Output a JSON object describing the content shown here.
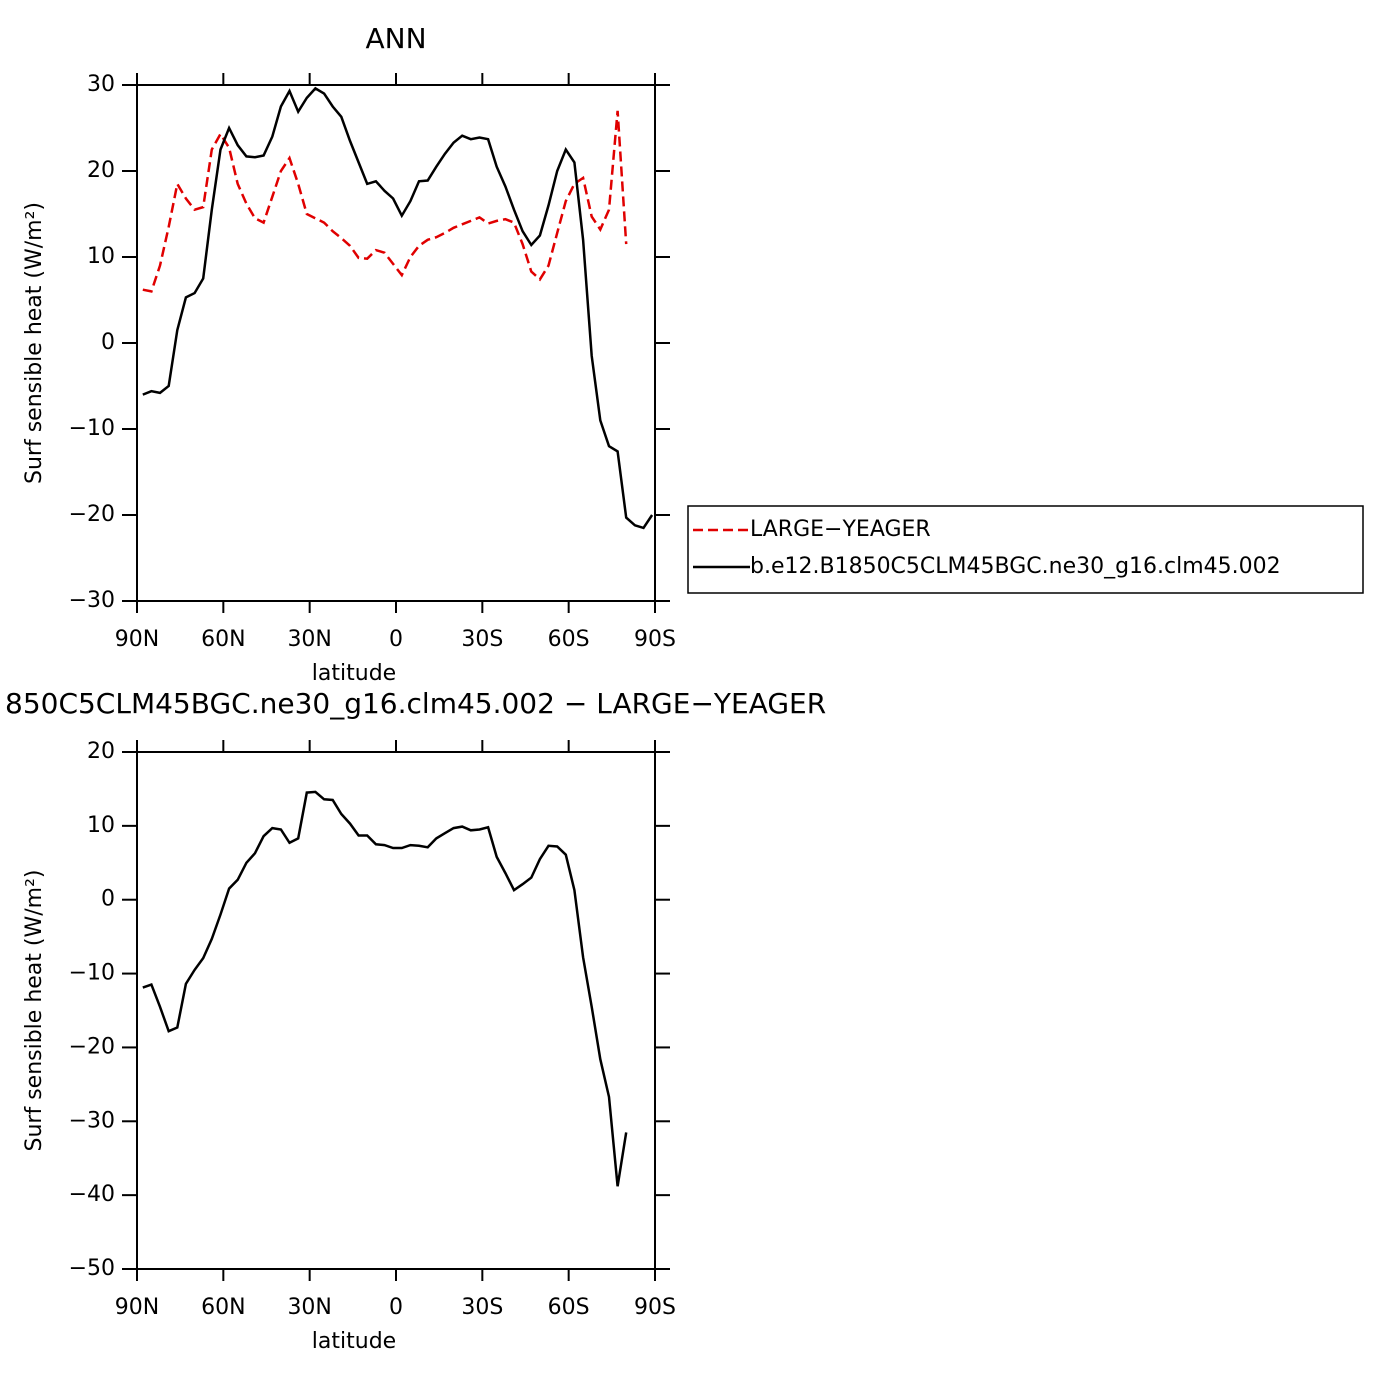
{
  "chart_data": [
    {
      "type": "line",
      "title": "ANN",
      "xlabel": "latitude",
      "ylabel": "Surf sensible heat (W/m²)",
      "x": [
        88,
        85,
        82,
        79,
        76,
        73,
        70,
        67,
        64,
        61,
        58,
        55,
        52,
        49,
        46,
        43,
        40,
        37,
        34,
        31,
        28,
        25,
        22,
        19,
        16,
        13,
        10,
        7,
        4,
        1,
        -2,
        -5,
        -8,
        -11,
        -14,
        -17,
        -20,
        -23,
        -26,
        -29,
        -32,
        -35,
        -38,
        -41,
        -44,
        -47,
        -50,
        -53,
        -56,
        -59,
        -62,
        -65,
        -68,
        -71,
        -74,
        -77,
        -80,
        -83,
        -86,
        -89
      ],
      "xlim": [
        90,
        -90
      ],
      "xticks": [
        {
          "value": 90,
          "label": "90N"
        },
        {
          "value": 60,
          "label": "60N"
        },
        {
          "value": 30,
          "label": "30N"
        },
        0,
        {
          "value": -30,
          "label": "30S"
        },
        {
          "value": -60,
          "label": "60S"
        },
        {
          "value": -90,
          "label": "90S"
        }
      ],
      "ylim": [
        -30,
        30
      ],
      "yticks": [
        30,
        20,
        10,
        0,
        {
          "value": -10,
          "label": "−10"
        },
        {
          "value": -20,
          "label": "−20"
        },
        {
          "value": -30,
          "label": "−30"
        }
      ],
      "legend": "right",
      "series": [
        {
          "name": "LARGE−YEAGER",
          "color": "#e00000",
          "dashed": true,
          "values": [
            6.2,
            6,
            9,
            13.5,
            18.5,
            16.8,
            15.5,
            15.8,
            22.5,
            24.3,
            22.7,
            18.5,
            16.2,
            14.5,
            14,
            17,
            20,
            21.5,
            18.5,
            15,
            14.5,
            14,
            13,
            12.2,
            11.3,
            9.9,
            9.8,
            10.8,
            10.5,
            9.2,
            7.9,
            10,
            11.3,
            12,
            12.3,
            12.8,
            13.4,
            13.8,
            14.2,
            14.6,
            13.9,
            14.2,
            14.4,
            14,
            11.5,
            8.3,
            7.4,
            9,
            12.8,
            16.5,
            18.5,
            19.2,
            14.7,
            13.2,
            15.5,
            27,
            11.5,
            null,
            null,
            null
          ]
        },
        {
          "name": "b.e12.B1850C5CLM45BGC.ne30_g16.clm45.002",
          "color": "#000000",
          "dashed": false,
          "values": [
            -6,
            -5.6,
            -5.8,
            -5,
            1.5,
            5.3,
            5.8,
            7.5,
            15.5,
            22.5,
            25,
            23,
            21.7,
            21.6,
            21.8,
            24,
            27.5,
            29.3,
            26.9,
            28.5,
            29.6,
            29,
            27.5,
            26.3,
            23.5,
            21,
            18.5,
            18.8,
            17.7,
            16.8,
            14.8,
            16.5,
            18.8,
            18.9,
            20.5,
            22,
            23.3,
            24.1,
            23.7,
            23.9,
            23.7,
            20.5,
            18.2,
            15.5,
            13,
            11.4,
            12.5,
            16,
            20,
            22.5,
            21,
            12,
            -1.5,
            -9,
            -12,
            -12.6,
            -20.3,
            -21.2,
            -21.5,
            -20
          ]
        }
      ]
    },
    {
      "type": "line",
      "title": "850C5CLM45BGC.ne30_g16.clm45.002 − LARGE−YEAGER",
      "xlabel": "latitude",
      "ylabel": "Surf sensible heat (W/m²)",
      "x": [
        88,
        85,
        82,
        79,
        76,
        73,
        70,
        67,
        64,
        61,
        58,
        55,
        52,
        49,
        46,
        43,
        40,
        37,
        34,
        31,
        28,
        25,
        22,
        19,
        16,
        13,
        10,
        7,
        4,
        1,
        -2,
        -5,
        -8,
        -11,
        -14,
        -17,
        -20,
        -23,
        -26,
        -29,
        -32,
        -35,
        -38,
        -41,
        -44,
        -47,
        -50,
        -53,
        -56,
        -59,
        -62,
        -65,
        -68,
        -71,
        -74,
        -77,
        -80,
        -83,
        -86,
        -89
      ],
      "xlim": [
        90,
        -90
      ],
      "xticks": [
        {
          "value": 90,
          "label": "90N"
        },
        {
          "value": 60,
          "label": "60N"
        },
        {
          "value": 30,
          "label": "30N"
        },
        0,
        {
          "value": -30,
          "label": "30S"
        },
        {
          "value": -60,
          "label": "60S"
        },
        {
          "value": -90,
          "label": "90S"
        }
      ],
      "ylim": [
        -50,
        20
      ],
      "yticks": [
        20,
        10,
        0,
        {
          "value": -10,
          "label": "−10"
        },
        {
          "value": -20,
          "label": "−20"
        },
        {
          "value": -30,
          "label": "−30"
        },
        {
          "value": -40,
          "label": "−40"
        },
        {
          "value": -50,
          "label": "−50"
        }
      ],
      "series": [
        {
          "color": "#000000",
          "dashed": false,
          "values": [
            -11.9,
            -11.5,
            -14.5,
            -17.8,
            -17.3,
            -11.4,
            -9.5,
            -7.9,
            -5.3,
            -2,
            1.5,
            2.7,
            5,
            6.3,
            8.6,
            9.7,
            9.5,
            7.7,
            8.3,
            14.5,
            14.6,
            13.6,
            13.5,
            11.6,
            10.3,
            8.7,
            8.7,
            7.5,
            7.4,
            7,
            7,
            7.4,
            7.3,
            7.1,
            8.3,
            9,
            9.7,
            9.9,
            9.4,
            9.5,
            9.8,
            5.8,
            3.6,
            1.3,
            2.1,
            3,
            5.5,
            7.3,
            7.2,
            6.1,
            1.3,
            -7.8,
            -14.5,
            -21.6,
            -26.7,
            -38.8,
            -31.5,
            null,
            null,
            null
          ]
        }
      ]
    }
  ]
}
